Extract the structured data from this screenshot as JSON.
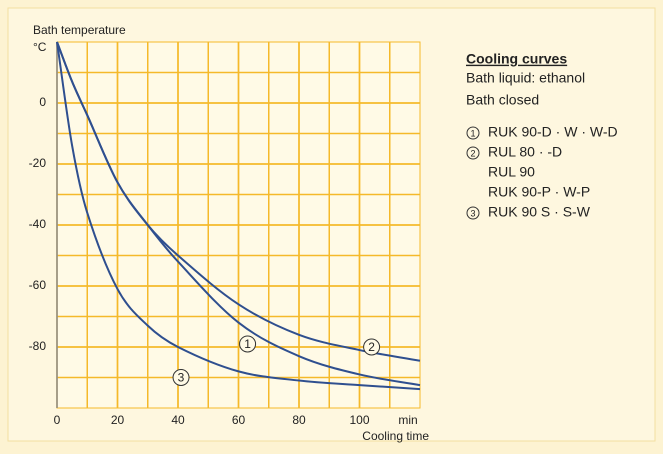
{
  "chart_data": {
    "type": "line",
    "y_axis_label": "Bath temperature",
    "y_unit": "°C",
    "x_axis_label": "Cooling time",
    "x_unit": "min",
    "x": [
      0,
      5,
      10,
      20,
      30,
      40,
      60,
      80,
      100,
      120
    ],
    "series": [
      {
        "label": "1",
        "name_lines": [
          "RUK 90-D · W · W-D"
        ],
        "color": "#2f4f8f",
        "values": [
          20,
          7,
          -4,
          -26,
          -40,
          -52,
          -72,
          -83,
          -89,
          -92.5
        ],
        "label_at": [
          63,
          -79
        ]
      },
      {
        "label": "2",
        "name_lines": [
          "RUL 80 · -D",
          "RUL 90",
          "RUK 90-P · W-P"
        ],
        "color": "#2f4f8f",
        "values": [
          20,
          7,
          -4,
          -26,
          -40,
          -50,
          -66,
          -76,
          -81,
          -84.5
        ],
        "label_at": [
          104,
          -80
        ]
      },
      {
        "label": "3",
        "name_lines": [
          "RUK 90 S ·  S-W"
        ],
        "color": "#2f4f8f",
        "values": [
          20,
          -14,
          -36,
          -61,
          -73,
          -80,
          -88,
          -91,
          -92.5,
          -93.8
        ],
        "label_at": [
          41,
          -90
        ]
      }
    ],
    "legend_title": "Cooling curves",
    "legend_notes": [
      "Bath liquid: ethanol",
      "Bath closed"
    ],
    "xlim": [
      0,
      120
    ],
    "xticks": [
      0,
      20,
      40,
      60,
      80,
      100
    ],
    "ylim": [
      -100,
      20
    ],
    "yticks": [
      0,
      -20,
      -40,
      -60,
      -80
    ],
    "grid": true,
    "grid_color": "#f5b92a"
  }
}
